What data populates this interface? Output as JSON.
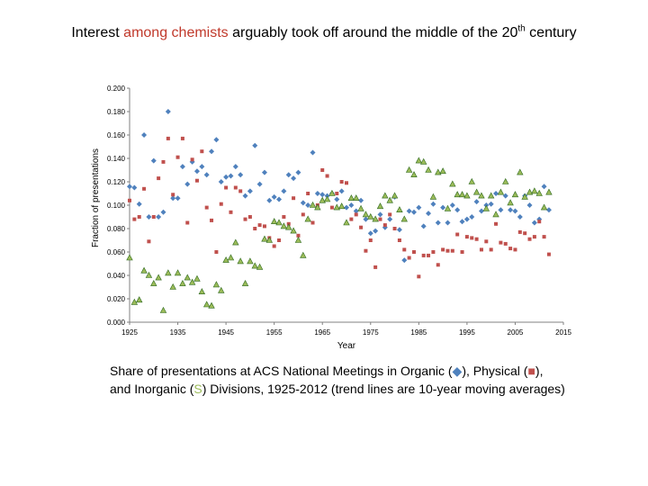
{
  "title": {
    "before": "Interest ",
    "highlight": "among chemists",
    "after": " arguably took off around the middle of the 20",
    "sup": "th",
    "end": " century"
  },
  "caption": {
    "line1_a": "Share of presentations at ACS National Meetings in Organic (",
    "organic_marker": "◆",
    "line1_b": "), Physical (",
    "physical_marker": "■",
    "line1_c": "),",
    "line2_a": "and Inorganic (",
    "inorganic_marker": "S",
    "line2_b": ") Divisions, 1925-2012 (trend lines are 10-year moving averages)"
  },
  "chart_data": {
    "type": "scatter",
    "title": "",
    "xlabel": "Year",
    "ylabel": "Fraction of presentations",
    "xlim": [
      1925,
      2015
    ],
    "ylim": [
      0,
      0.2
    ],
    "xticks": [
      "1925",
      "1935",
      "1945",
      "1955",
      "1965",
      "1975",
      "1985",
      "1995",
      "2005",
      "2015"
    ],
    "yticks": [
      "0.000",
      "0.020",
      "0.040",
      "0.060",
      "0.080",
      "0.100",
      "0.120",
      "0.140",
      "0.160",
      "0.180",
      "0.200"
    ],
    "colors": {
      "organic": "#4f81bd",
      "physical": "#c0504d",
      "inorganic": "#9bbb59",
      "inorganic_edge": "#2f6a1f"
    },
    "series": [
      {
        "name": "Organic",
        "marker": "diamond",
        "x": [
          1925,
          1926,
          1927,
          1928,
          1929,
          1930,
          1931,
          1932,
          1933,
          1934,
          1935,
          1936,
          1937,
          1938,
          1939,
          1940,
          1941,
          1942,
          1943,
          1944,
          1945,
          1946,
          1947,
          1948,
          1949,
          1950,
          1951,
          1952,
          1953,
          1954,
          1955,
          1956,
          1957,
          1958,
          1959,
          1960,
          1961,
          1962,
          1963,
          1964,
          1965,
          1966,
          1967,
          1968,
          1969,
          1970,
          1971,
          1972,
          1973,
          1974,
          1975,
          1976,
          1977,
          1978,
          1979,
          1980,
          1981,
          1982,
          1983,
          1984,
          1985,
          1986,
          1987,
          1988,
          1989,
          1990,
          1991,
          1992,
          1993,
          1994,
          1995,
          1996,
          1997,
          1998,
          1999,
          2000,
          2001,
          2002,
          2003,
          2004,
          2005,
          2006,
          2007,
          2008,
          2009,
          2010,
          2011,
          2012
        ],
        "values": [
          0.116,
          0.115,
          0.101,
          0.16,
          0.09,
          0.138,
          0.09,
          0.094,
          0.18,
          0.106,
          0.106,
          0.133,
          0.118,
          0.137,
          0.129,
          0.133,
          0.126,
          0.146,
          0.156,
          0.12,
          0.124,
          0.125,
          0.133,
          0.126,
          0.108,
          0.112,
          0.151,
          0.118,
          0.128,
          0.104,
          0.107,
          0.105,
          0.112,
          0.126,
          0.123,
          0.128,
          0.102,
          0.1,
          0.145,
          0.11,
          0.109,
          0.108,
          0.11,
          0.105,
          0.112,
          0.098,
          0.1,
          0.095,
          0.104,
          0.088,
          0.076,
          0.078,
          0.092,
          0.081,
          0.088,
          0.107,
          0.079,
          0.053,
          0.095,
          0.094,
          0.098,
          0.082,
          0.093,
          0.101,
          0.085,
          0.098,
          0.085,
          0.1,
          0.096,
          0.086,
          0.088,
          0.09,
          0.103,
          0.095,
          0.1,
          0.101,
          0.11,
          0.096,
          0.108,
          0.096,
          0.095,
          0.09,
          0.108,
          0.1,
          0.085,
          0.088,
          0.116,
          0.096
        ]
      },
      {
        "name": "Physical",
        "marker": "square",
        "x": [
          1925,
          1926,
          1927,
          1928,
          1929,
          1930,
          1931,
          1932,
          1933,
          1934,
          1935,
          1936,
          1937,
          1938,
          1939,
          1940,
          1941,
          1942,
          1943,
          1944,
          1945,
          1946,
          1947,
          1948,
          1949,
          1950,
          1951,
          1952,
          1953,
          1954,
          1955,
          1956,
          1957,
          1958,
          1959,
          1960,
          1961,
          1962,
          1963,
          1964,
          1965,
          1966,
          1967,
          1968,
          1969,
          1970,
          1971,
          1972,
          1973,
          1974,
          1975,
          1976,
          1977,
          1978,
          1979,
          1980,
          1981,
          1982,
          1983,
          1984,
          1985,
          1986,
          1987,
          1988,
          1989,
          1990,
          1991,
          1992,
          1993,
          1994,
          1995,
          1996,
          1997,
          1998,
          1999,
          2000,
          2001,
          2002,
          2003,
          2004,
          2005,
          2006,
          2007,
          2008,
          2009,
          2010,
          2011,
          2012
        ],
        "values": [
          0.104,
          0.088,
          0.09,
          0.114,
          0.069,
          0.09,
          0.123,
          0.137,
          0.157,
          0.109,
          0.141,
          0.157,
          0.085,
          0.139,
          0.121,
          0.146,
          0.098,
          0.087,
          0.06,
          0.101,
          0.115,
          0.094,
          0.115,
          0.112,
          0.088,
          0.09,
          0.08,
          0.083,
          0.082,
          0.072,
          0.065,
          0.07,
          0.09,
          0.084,
          0.106,
          0.074,
          0.092,
          0.11,
          0.085,
          0.1,
          0.13,
          0.125,
          0.098,
          0.11,
          0.12,
          0.119,
          0.088,
          0.092,
          0.081,
          0.061,
          0.07,
          0.047,
          0.088,
          0.083,
          0.092,
          0.08,
          0.07,
          0.062,
          0.055,
          0.06,
          0.039,
          0.057,
          0.057,
          0.06,
          0.049,
          0.062,
          0.061,
          0.061,
          0.075,
          0.06,
          0.073,
          0.072,
          0.071,
          0.062,
          0.069,
          0.062,
          0.084,
          0.068,
          0.067,
          0.063,
          0.062,
          0.077,
          0.076,
          0.071,
          0.073,
          0.086,
          0.073,
          0.058
        ]
      },
      {
        "name": "Inorganic",
        "marker": "triangle",
        "x": [
          1925,
          1926,
          1927,
          1928,
          1929,
          1930,
          1931,
          1932,
          1933,
          1934,
          1935,
          1936,
          1937,
          1938,
          1939,
          1940,
          1941,
          1942,
          1943,
          1944,
          1945,
          1946,
          1947,
          1948,
          1949,
          1950,
          1951,
          1952,
          1953,
          1954,
          1955,
          1956,
          1957,
          1958,
          1959,
          1960,
          1961,
          1962,
          1963,
          1964,
          1965,
          1966,
          1967,
          1968,
          1969,
          1970,
          1971,
          1972,
          1973,
          1974,
          1975,
          1976,
          1977,
          1978,
          1979,
          1980,
          1981,
          1982,
          1983,
          1984,
          1985,
          1986,
          1987,
          1988,
          1989,
          1990,
          1991,
          1992,
          1993,
          1994,
          1995,
          1996,
          1997,
          1998,
          1999,
          2000,
          2001,
          2002,
          2003,
          2004,
          2005,
          2006,
          2007,
          2008,
          2009,
          2010,
          2011,
          2012
        ],
        "values": [
          0.055,
          0.017,
          0.019,
          0.044,
          0.04,
          0.033,
          0.038,
          0.01,
          0.042,
          0.03,
          0.042,
          0.033,
          0.038,
          0.034,
          0.037,
          0.026,
          0.015,
          0.014,
          0.032,
          0.027,
          0.053,
          0.055,
          0.068,
          0.052,
          0.033,
          0.052,
          0.048,
          0.047,
          0.071,
          0.07,
          0.086,
          0.085,
          0.082,
          0.081,
          0.078,
          0.07,
          0.057,
          0.088,
          0.1,
          0.098,
          0.104,
          0.105,
          0.11,
          0.098,
          0.099,
          0.085,
          0.106,
          0.106,
          0.097,
          0.092,
          0.09,
          0.088,
          0.099,
          0.108,
          0.104,
          0.108,
          0.096,
          0.088,
          0.13,
          0.126,
          0.138,
          0.137,
          0.13,
          0.107,
          0.128,
          0.129,
          0.097,
          0.118,
          0.109,
          0.109,
          0.108,
          0.12,
          0.111,
          0.108,
          0.097,
          0.108,
          0.092,
          0.111,
          0.12,
          0.102,
          0.109,
          0.128,
          0.107,
          0.111,
          0.112,
          0.11,
          0.098,
          0.111
        ]
      }
    ]
  }
}
